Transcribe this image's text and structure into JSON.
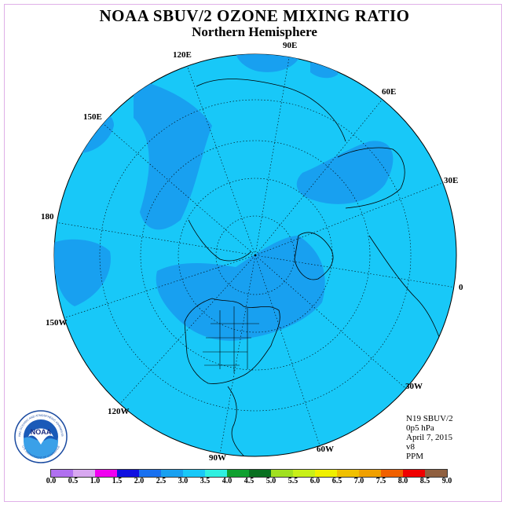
{
  "title": "NOAA SBUV/2 OZONE MIXING RATIO",
  "subtitle": "Northern Hemisphere",
  "longitude_labels": {
    "lon_90e": "90E",
    "lon_60e": "60E",
    "lon_30e": "30E",
    "lon_0": "0",
    "lon_30w": "30W",
    "lon_60w": "60W",
    "lon_90w": "90W",
    "lon_120w": "120W",
    "lon_150w": "150W",
    "lon_180": "180",
    "lon_150e": "150E",
    "lon_120e": "120E"
  },
  "info": {
    "instrument": "N19 SBUV/2",
    "level": "0p5 hPa",
    "date": "April 7, 2015",
    "version": "v8",
    "units": "PPM"
  },
  "logo": {
    "text": "NOAA",
    "ring_text": "NATIONAL OCEANIC AND ATMOSPHERIC ADMINISTRATION",
    "ring_text_bottom": "U.S. DEPARTMENT OF COMMERCE"
  },
  "colorbar": {
    "colors": [
      "#b070f0",
      "#d8a8f0",
      "#f000f0",
      "#1010e0",
      "#1870f0",
      "#18a0f0",
      "#18c8f8",
      "#30f0e0",
      "#10a030",
      "#087020",
      "#a0e020",
      "#c8f018",
      "#f0f000",
      "#f0c000",
      "#f0a000",
      "#f06000",
      "#f00000",
      "#906040"
    ],
    "labels": [
      "0.0",
      "0.5",
      "1.0",
      "1.5",
      "2.0",
      "2.5",
      "3.0",
      "3.5",
      "4.0",
      "4.5",
      "5.0",
      "5.5",
      "6.0",
      "6.5",
      "7.0",
      "7.5",
      "8.0",
      "8.5",
      "9.0"
    ]
  },
  "colors": {
    "background_field": "#18c8f8",
    "darker_field": "#18a0f0",
    "land_outline": "#000000",
    "frame": "#e0b0e8"
  }
}
